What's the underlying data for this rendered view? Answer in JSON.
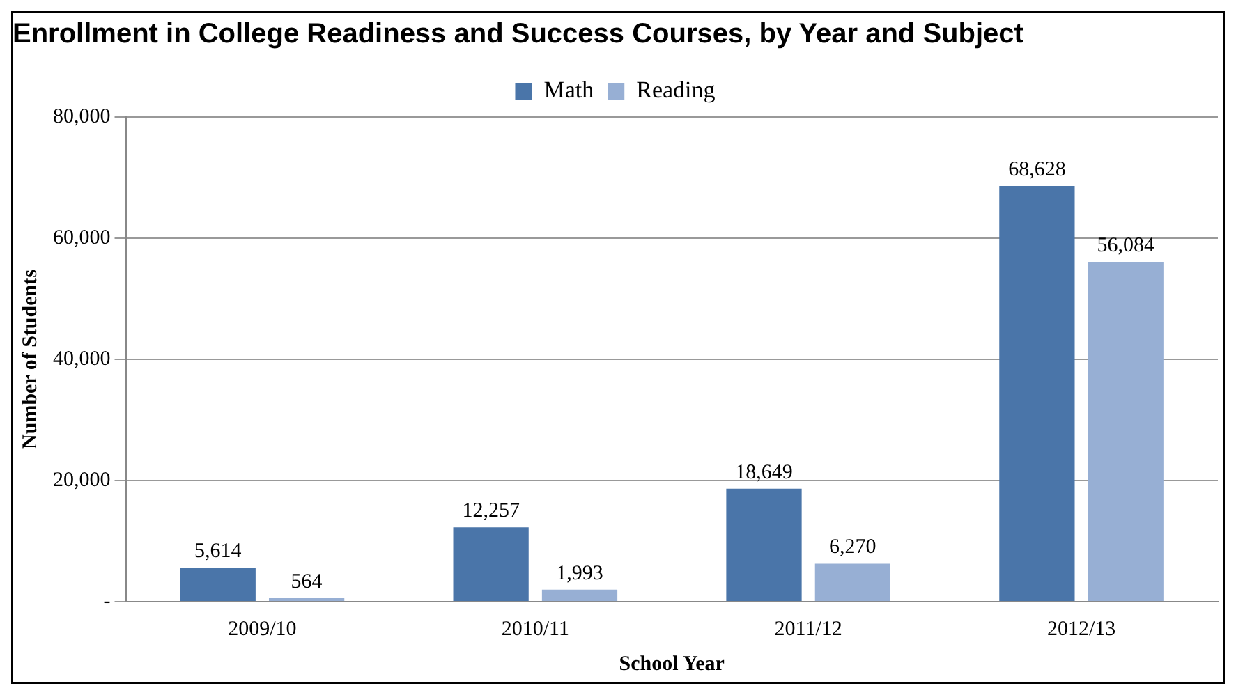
{
  "chart_data": {
    "type": "bar",
    "title": "Enrollment in College Readiness and Success Courses, by Year and Subject",
    "xlabel": "School Year",
    "ylabel": "Number of Students",
    "categories": [
      "2009/10",
      "2010/11",
      "2011/12",
      "2012/13"
    ],
    "series": [
      {
        "name": "Math",
        "color": "#4a75a9",
        "values": [
          5614,
          12257,
          18649,
          68628
        ],
        "value_labels": [
          "5,614",
          "12,257",
          "18,649",
          "68,628"
        ]
      },
      {
        "name": "Reading",
        "color": "#97afd4",
        "values": [
          564,
          1993,
          6270,
          56084
        ],
        "value_labels": [
          "564",
          "1,993",
          "6,270",
          "56,084"
        ]
      }
    ],
    "ylim": [
      0,
      80000
    ],
    "yticks": [
      {
        "value": 0,
        "label": "-"
      },
      {
        "value": 20000,
        "label": "20,000"
      },
      {
        "value": 40000,
        "label": "40,000"
      },
      {
        "value": 60000,
        "label": "60,000"
      },
      {
        "value": 80000,
        "label": "80,000"
      }
    ],
    "grid": "y",
    "legend": "top"
  }
}
